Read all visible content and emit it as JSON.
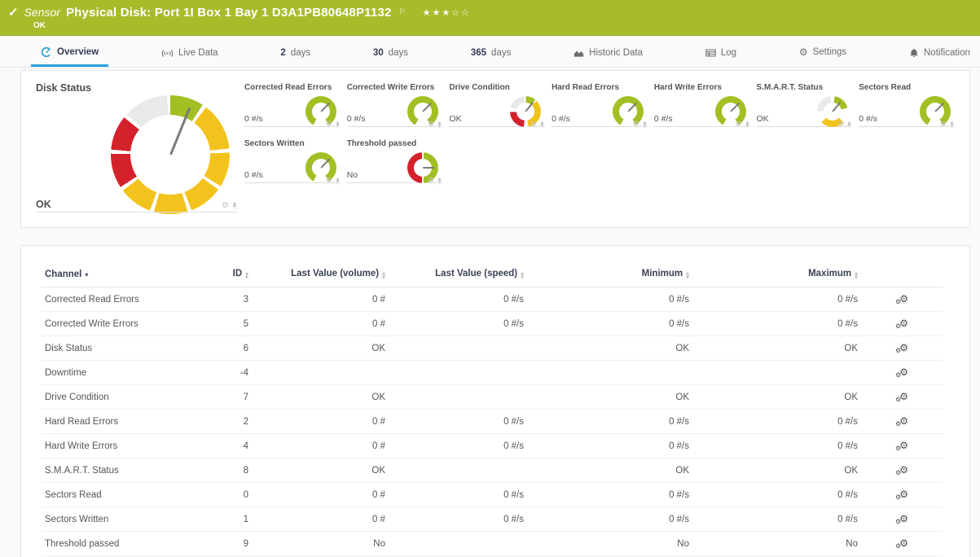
{
  "colors": {
    "header_green": "#a8bb2b",
    "accent_blue": "#2ba0d9",
    "gauge_lime": "#a2bf24",
    "gauge_yellow": "#f3c31d",
    "gauge_red": "#d3222c",
    "gauge_grey_segment": "#e9e9e9",
    "needle_grey": "#7b7b7b"
  },
  "header": {
    "status_icon": "check-icon",
    "kind_label": "Sensor",
    "title": "Physical Disk: Port 1I Box 1 Bay 1 D3A1PB80648P1132",
    "flag_icon": "flag-icon",
    "priority": {
      "filled": 3,
      "total": 5
    },
    "status_text": "OK"
  },
  "tabs": [
    {
      "id": "overview",
      "icon": "gauge",
      "label": "Overview",
      "active": true
    },
    {
      "id": "live-data",
      "icon": "live",
      "label": "Live Data"
    },
    {
      "id": "2-days",
      "num": "2",
      "label": "days"
    },
    {
      "id": "30-days",
      "num": "30",
      "label": "days"
    },
    {
      "id": "365-days",
      "num": "365",
      "label": "days"
    },
    {
      "id": "historic-data",
      "icon": "chart",
      "label": "Historic Data"
    },
    {
      "id": "log",
      "icon": "log",
      "label": "Log"
    },
    {
      "id": "settings",
      "icon": "gear",
      "label": "Settings"
    },
    {
      "id": "notifications",
      "icon": "bell",
      "label": "Notification"
    }
  ],
  "gauges": {
    "footer_icons": [
      "gear-icon",
      "pin-icon"
    ],
    "main": {
      "id": "disk-status",
      "title": "Disk Status",
      "value": "OK",
      "needle_deg": 22
    },
    "small": [
      {
        "id": "corrected-read-errors",
        "title": "Corrected Read Errors",
        "value": "0 #/s",
        "type": "arc",
        "needle_deg": 45
      },
      {
        "id": "corrected-write-errors",
        "title": "Corrected Write Errors",
        "value": "0 #/s",
        "type": "arc",
        "needle_deg": 45
      },
      {
        "id": "drive-condition",
        "title": "Drive Condition",
        "value": "OK",
        "type": "multi",
        "needle_deg": 40
      },
      {
        "id": "hard-read-errors",
        "title": "Hard Read Errors",
        "value": "0 #/s",
        "type": "arc",
        "needle_deg": 45
      },
      {
        "id": "hard-write-errors",
        "title": "Hard Write Errors",
        "value": "0 #/s",
        "type": "arc",
        "needle_deg": 45
      },
      {
        "id": "smart-status",
        "title": "S.M.A.R.T. Status",
        "value": "OK",
        "type": "smart",
        "needle_deg": 40
      },
      {
        "id": "sectors-read",
        "title": "Sectors Read",
        "value": "0 #/s",
        "type": "arc",
        "needle_deg": 45
      },
      {
        "id": "sectors-written",
        "title": "Sectors Written",
        "value": "0 #/s",
        "type": "arc",
        "needle_deg": 45
      },
      {
        "id": "threshold-passed",
        "title": "Threshold passed",
        "value": "No",
        "type": "half",
        "needle_deg": 90
      }
    ]
  },
  "table": {
    "row_action_icon": "channel-settings-icon",
    "sort_icon": "sort-arrows-icon",
    "columns": [
      {
        "id": "channel",
        "label": "Channel",
        "sort": "active",
        "align": "left"
      },
      {
        "id": "id",
        "label": "ID",
        "sort": "both",
        "align": "right"
      },
      {
        "id": "last-volume",
        "label": "Last Value (volume)",
        "sort": "both",
        "align": "right"
      },
      {
        "id": "last-speed",
        "label": "Last Value (speed)",
        "sort": "both",
        "align": "right"
      },
      {
        "id": "minimum",
        "label": "Minimum",
        "sort": "both",
        "align": "right"
      },
      {
        "id": "maximum",
        "label": "Maximum",
        "sort": "both",
        "align": "right"
      },
      {
        "id": "actions",
        "label": "",
        "sort": "none",
        "align": "center"
      }
    ],
    "rows": [
      {
        "channel": "Corrected Read Errors",
        "id": "3",
        "last_volume": "0 #",
        "last_speed": "0 #/s",
        "min": "0 #/s",
        "max": "0 #/s"
      },
      {
        "channel": "Corrected Write Errors",
        "id": "5",
        "last_volume": "0 #",
        "last_speed": "0 #/s",
        "min": "0 #/s",
        "max": "0 #/s"
      },
      {
        "channel": "Disk Status",
        "id": "6",
        "last_volume": "OK",
        "last_speed": "",
        "min": "OK",
        "max": "OK"
      },
      {
        "channel": "Downtime",
        "id": "-4",
        "last_volume": "",
        "last_speed": "",
        "min": "",
        "max": ""
      },
      {
        "channel": "Drive Condition",
        "id": "7",
        "last_volume": "OK",
        "last_speed": "",
        "min": "OK",
        "max": "OK"
      },
      {
        "channel": "Hard Read Errors",
        "id": "2",
        "last_volume": "0 #",
        "last_speed": "0 #/s",
        "min": "0 #/s",
        "max": "0 #/s"
      },
      {
        "channel": "Hard Write Errors",
        "id": "4",
        "last_volume": "0 #",
        "last_speed": "0 #/s",
        "min": "0 #/s",
        "max": "0 #/s"
      },
      {
        "channel": "S.M.A.R.T. Status",
        "id": "8",
        "last_volume": "OK",
        "last_speed": "",
        "min": "OK",
        "max": "OK"
      },
      {
        "channel": "Sectors Read",
        "id": "0",
        "last_volume": "0 #",
        "last_speed": "0 #/s",
        "min": "0 #/s",
        "max": "0 #/s"
      },
      {
        "channel": "Sectors Written",
        "id": "1",
        "last_volume": "0 #",
        "last_speed": "0 #/s",
        "min": "0 #/s",
        "max": "0 #/s"
      },
      {
        "channel": "Threshold passed",
        "id": "9",
        "last_volume": "No",
        "last_speed": "",
        "min": "No",
        "max": "No"
      }
    ]
  }
}
